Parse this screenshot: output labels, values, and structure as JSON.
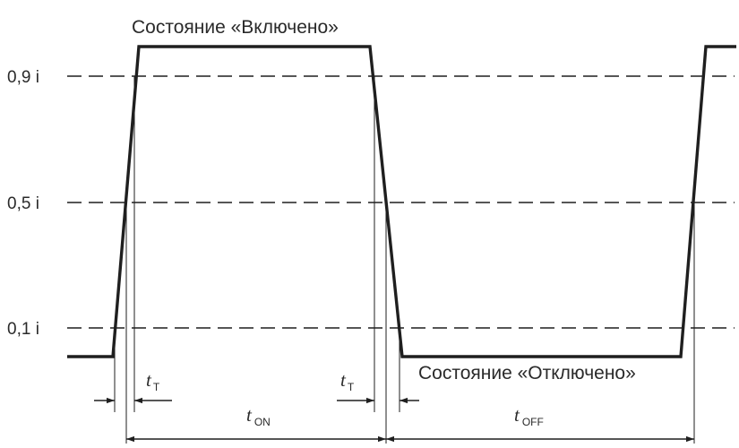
{
  "levels": {
    "high": "0,9 i",
    "mid": "0,5 i",
    "low": "0,1 i"
  },
  "states": {
    "on": "Состояние «Включено»",
    "off": "Состояние «Отключено»"
  },
  "intervals": {
    "rise": {
      "symbol": "t",
      "subscript": "T"
    },
    "fall": {
      "symbol": "t",
      "subscript": "T"
    },
    "on": {
      "symbol": "t",
      "subscript": "ON"
    },
    "off": {
      "symbol": "t",
      "subscript": "OFF"
    }
  },
  "colors": {
    "ink": "#1f1f1f",
    "text": "#2a2a2a",
    "background": "#ffffff"
  }
}
